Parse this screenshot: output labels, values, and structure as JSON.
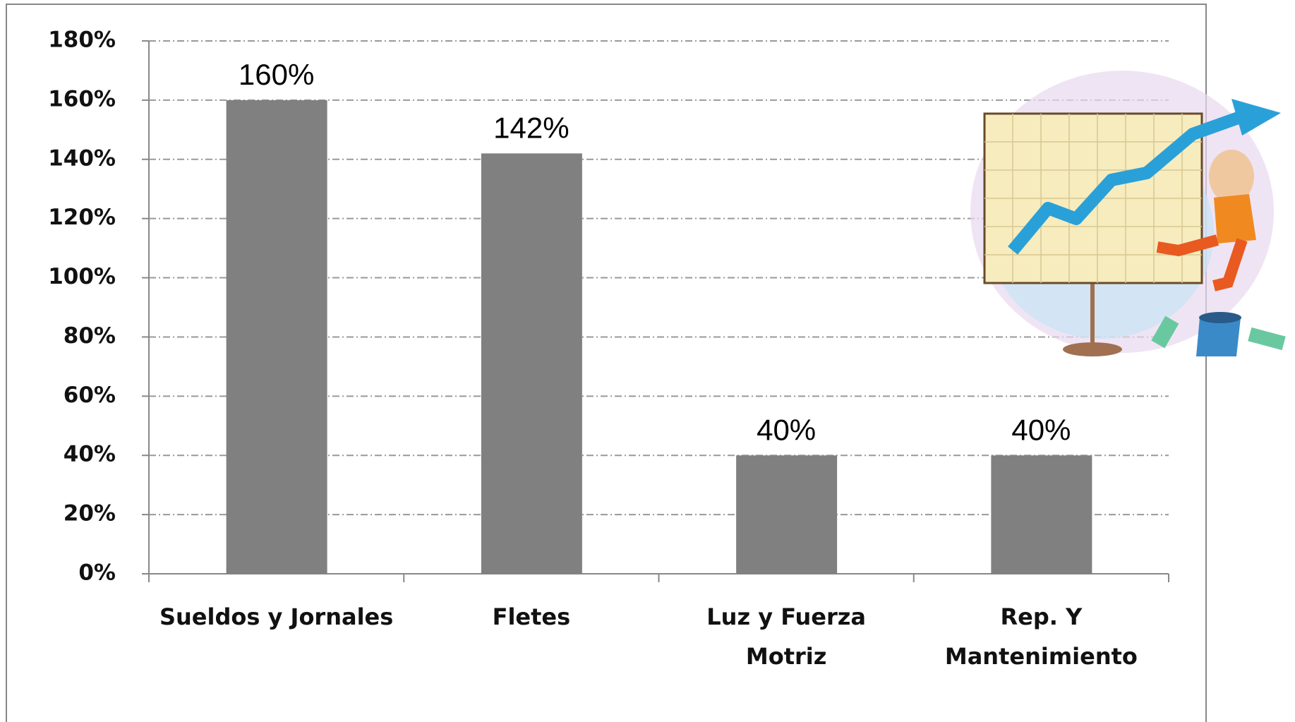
{
  "chart_data": {
    "type": "bar",
    "categories": [
      "Sueldos y Jornales",
      "Fletes",
      "Luz y Fuerza\nMotriz",
      "Rep. Y\nMantenimiento"
    ],
    "values": [
      160,
      142,
      40,
      40
    ],
    "value_labels": [
      "160%",
      "142%",
      "40%",
      "40%"
    ],
    "color": "#808080",
    "ylim": [
      0,
      180
    ],
    "yticks": [
      {
        "value": 0,
        "label": "0%"
      },
      {
        "value": 20,
        "label": "20%"
      },
      {
        "value": 40,
        "label": "40%"
      },
      {
        "value": 60,
        "label": "60%"
      },
      {
        "value": 80,
        "label": "80%"
      },
      {
        "value": 100,
        "label": "100%"
      },
      {
        "value": 120,
        "label": "120%"
      },
      {
        "value": 140,
        "label": "140%"
      },
      {
        "value": 160,
        "label": "160%"
      },
      {
        "value": 180,
        "label": "180%"
      }
    ],
    "grid": true
  }
}
